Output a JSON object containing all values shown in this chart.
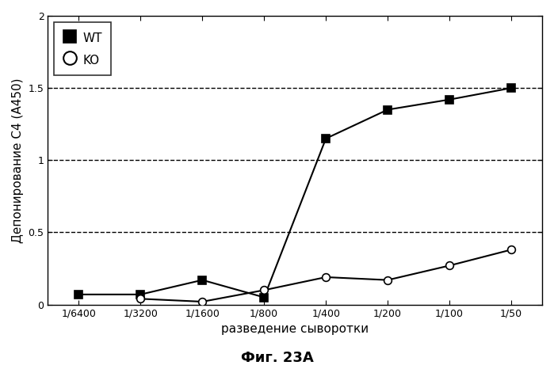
{
  "x_labels": [
    "1/6400",
    "1/3200",
    "1/1600",
    "1/800",
    "1/400",
    "1/200",
    "1/100",
    "1/50"
  ],
  "x_positions": [
    1,
    2,
    3,
    4,
    5,
    6,
    7,
    8
  ],
  "wt_values": [
    0.07,
    0.07,
    0.17,
    0.05,
    1.15,
    1.35,
    1.42,
    1.5
  ],
  "ko_values": [
    null,
    0.04,
    0.02,
    0.1,
    0.19,
    0.17,
    0.27,
    0.38
  ],
  "ylabel": "Депонирование С4 (А450)",
  "xlabel": "разведение сыворотки",
  "title": "Фиг. 23А",
  "ylim": [
    0,
    2.0
  ],
  "yticks": [
    0,
    0.5,
    1.0,
    1.5,
    2
  ],
  "ytick_labels": [
    "0",
    "0.5",
    "1",
    "1.5",
    "2"
  ],
  "hlines": [
    0.5,
    1.0,
    1.5
  ],
  "legend_wt": "WT",
  "legend_ko": "KO",
  "line_color": "#000000",
  "background_color": "#ffffff",
  "wt_marker": "s",
  "ko_marker": "o",
  "wt_marker_facecolor": "#000000",
  "ko_marker_facecolor": "#ffffff",
  "marker_size": 7,
  "linewidth": 1.5,
  "figsize": [
    6.99,
    4.66
  ],
  "dpi": 100
}
